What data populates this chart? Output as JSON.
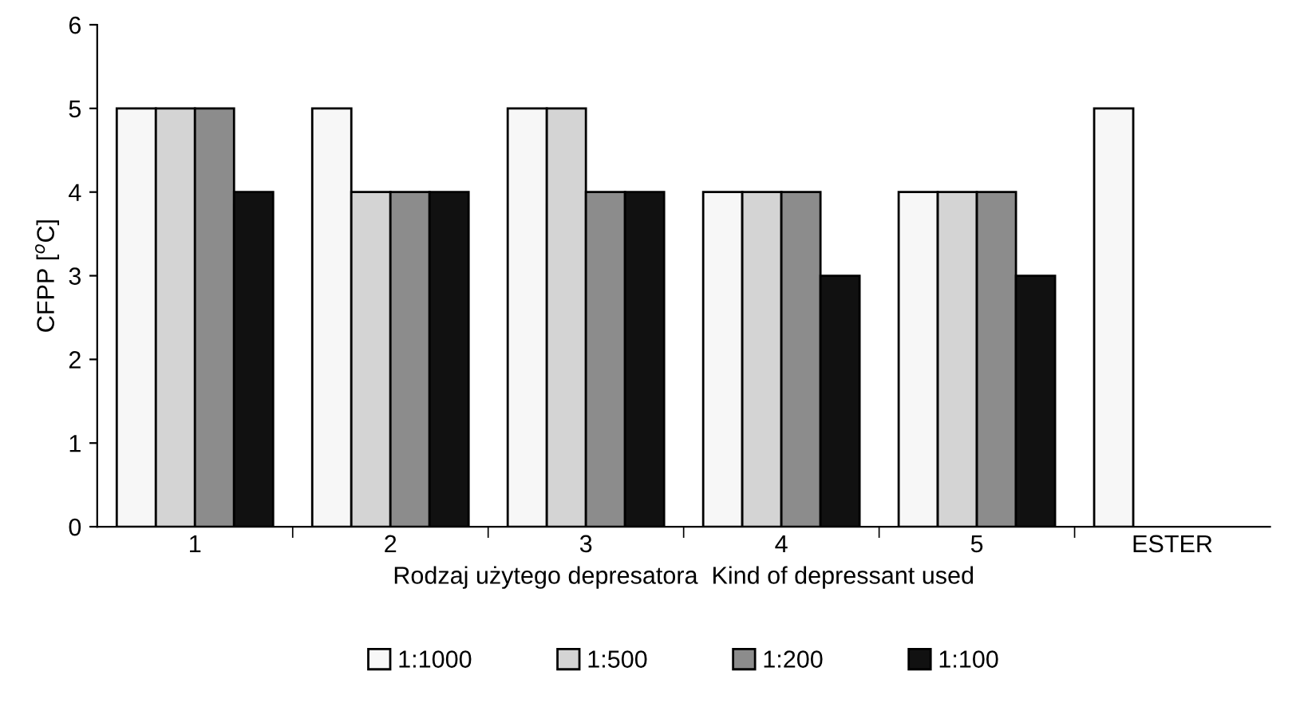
{
  "chart_data": {
    "type": "bar",
    "xlabel": "Rodzaj użytego depresatora  Kind of depressant used",
    "ylabel": "CFPP [$^{o}$C]",
    "categories": [
      "1",
      "2",
      "3",
      "4",
      "5",
      "ESTER"
    ],
    "series": [
      {
        "name": "1:1000",
        "color": "#f7f7f7",
        "values": [
          5,
          5,
          5,
          4,
          4,
          5
        ]
      },
      {
        "name": "1:500",
        "color": "#d4d4d4",
        "values": [
          5,
          4,
          5,
          4,
          4,
          null
        ]
      },
      {
        "name": "1:200",
        "color": "#8c8c8c",
        "values": [
          5,
          4,
          4,
          4,
          4,
          null
        ]
      },
      {
        "name": "1:100",
        "color": "#111111",
        "values": [
          4,
          4,
          4,
          3,
          3,
          null
        ]
      }
    ],
    "ylim": [
      0,
      6
    ],
    "yticks": [
      0,
      1,
      2,
      3,
      4,
      5,
      6
    ],
    "grid": false,
    "legend": "bottom"
  }
}
